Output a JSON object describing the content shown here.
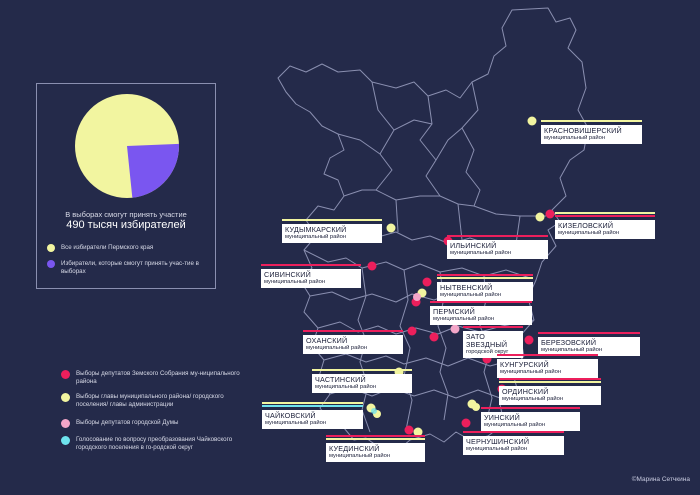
{
  "colors": {
    "background": "#242a4a",
    "yellow": "#f2f5a0",
    "purple": "#7a56f0",
    "red": "#ec1f5c",
    "pink": "#f3a6c8",
    "cyan": "#6ee3ee",
    "outline": "#8a8fb0"
  },
  "chart_data": {
    "type": "pie",
    "slices": [
      {
        "label": "Все избиратели Пермского края",
        "fraction": 0.76,
        "color": "#f2f5a0"
      },
      {
        "label": "Избиратели, которые смогут принять участие в выборах",
        "fraction": 0.24,
        "color": "#7a56f0"
      }
    ]
  },
  "pie": {
    "caption_line1": "В выборах смогут принять участие",
    "caption_line2": "490 тысяч избирателей",
    "legend_all": "Все избиратели Пермского края",
    "legend_part": "Избиратели, которые смогут принять учас-тие в выборах"
  },
  "legend": {
    "zemsky": "Выборы депутатов Земского Собрания му-ниципального района",
    "heads": "Выборы главы муниципального района/ городского поселения/ главы администрации",
    "duma": "Выборы депутатов городской Думы",
    "vote": "Голосование по вопросу преобразования Чайковского городского поселения в го-родской округ"
  },
  "districts": {
    "krasnovishersky": {
      "name": "КРАСНОВИШЕРСКИЙ",
      "sub": "муниципальный район"
    },
    "kizelovsky": {
      "name": "КИЗЕЛОВСКИЙ",
      "sub": "муниципальный район"
    },
    "kudymkarsky": {
      "name": "КУДЫМКАРСКИЙ",
      "sub": "муниципальный район"
    },
    "ilyinsky": {
      "name": "ИЛЬИНСКИЙ",
      "sub": "муниципальный район"
    },
    "sivinsky": {
      "name": "СИВИНСКИЙ",
      "sub": "муниципальный район"
    },
    "nytvensky": {
      "name": "НЫТВЕНСКИЙ",
      "sub": "муниципальный район"
    },
    "permsky": {
      "name": "ПЕРМСКИЙ",
      "sub": "муниципальный район"
    },
    "okhansky": {
      "name": "ОХАНСКИЙ",
      "sub": "муниципальный район"
    },
    "zvezdny": {
      "name": "ЗАТО ЗВЕЗДНЫЙ",
      "sub": "городской округ"
    },
    "berezovsky": {
      "name": "БЕРЕЗОВСКИЙ",
      "sub": "муниципальный район"
    },
    "kungursky": {
      "name": "КУНГУРСКИЙ",
      "sub": "муниципальный район"
    },
    "chastinsky": {
      "name": "ЧАСТИНСКИЙ",
      "sub": "муниципальный район"
    },
    "ordinsky": {
      "name": "ОРДИНСКИЙ",
      "sub": "муниципальный район"
    },
    "chaikovsky": {
      "name": "ЧАЙКОВСКИЙ",
      "sub": "муниципальный район"
    },
    "uinsky": {
      "name": "УИНСКИЙ",
      "sub": "муниципальный район"
    },
    "kuedinsky": {
      "name": "КУЕДИНСКИЙ",
      "sub": "муниципальный район"
    },
    "cherdyshinsky": {
      "name": "ЧЕРНУШИНСКИЙ",
      "sub": "муниципальный район"
    }
  },
  "credit": "©Марина Сетчкина"
}
